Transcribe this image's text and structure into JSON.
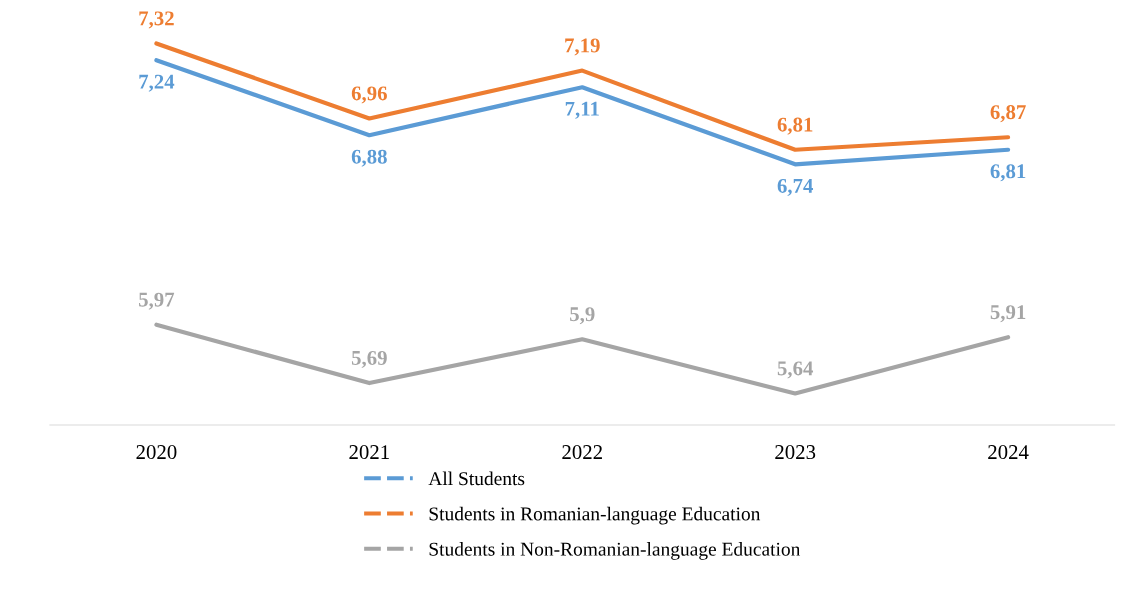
{
  "chart_data": {
    "type": "line",
    "categories": [
      "2020",
      "2021",
      "2022",
      "2023",
      "2024"
    ],
    "series": [
      {
        "name": "All Students",
        "color": "#5b9bd5",
        "values": [
          7.24,
          6.88,
          7.11,
          6.74,
          6.81
        ],
        "value_labels": [
          "7,24",
          "6,88",
          "7,11",
          "6,74",
          "6,81"
        ]
      },
      {
        "name": "Students in Romanian-language Education",
        "color": "#ed7d31",
        "values": [
          7.32,
          6.96,
          7.19,
          6.81,
          6.87
        ],
        "value_labels": [
          "7,32",
          "6,96",
          "7,19",
          "6,81",
          "6,87"
        ]
      },
      {
        "name": "Students in Non-Romanian-language Education",
        "color": "#a5a5a5",
        "values": [
          5.97,
          5.69,
          5.9,
          5.64,
          5.91
        ],
        "value_labels": [
          "5,97",
          "5,69",
          "5,9",
          "5,64",
          "5,91"
        ]
      }
    ],
    "legend": "bottom",
    "grid": false,
    "marker": "none",
    "line_style": "solid"
  }
}
